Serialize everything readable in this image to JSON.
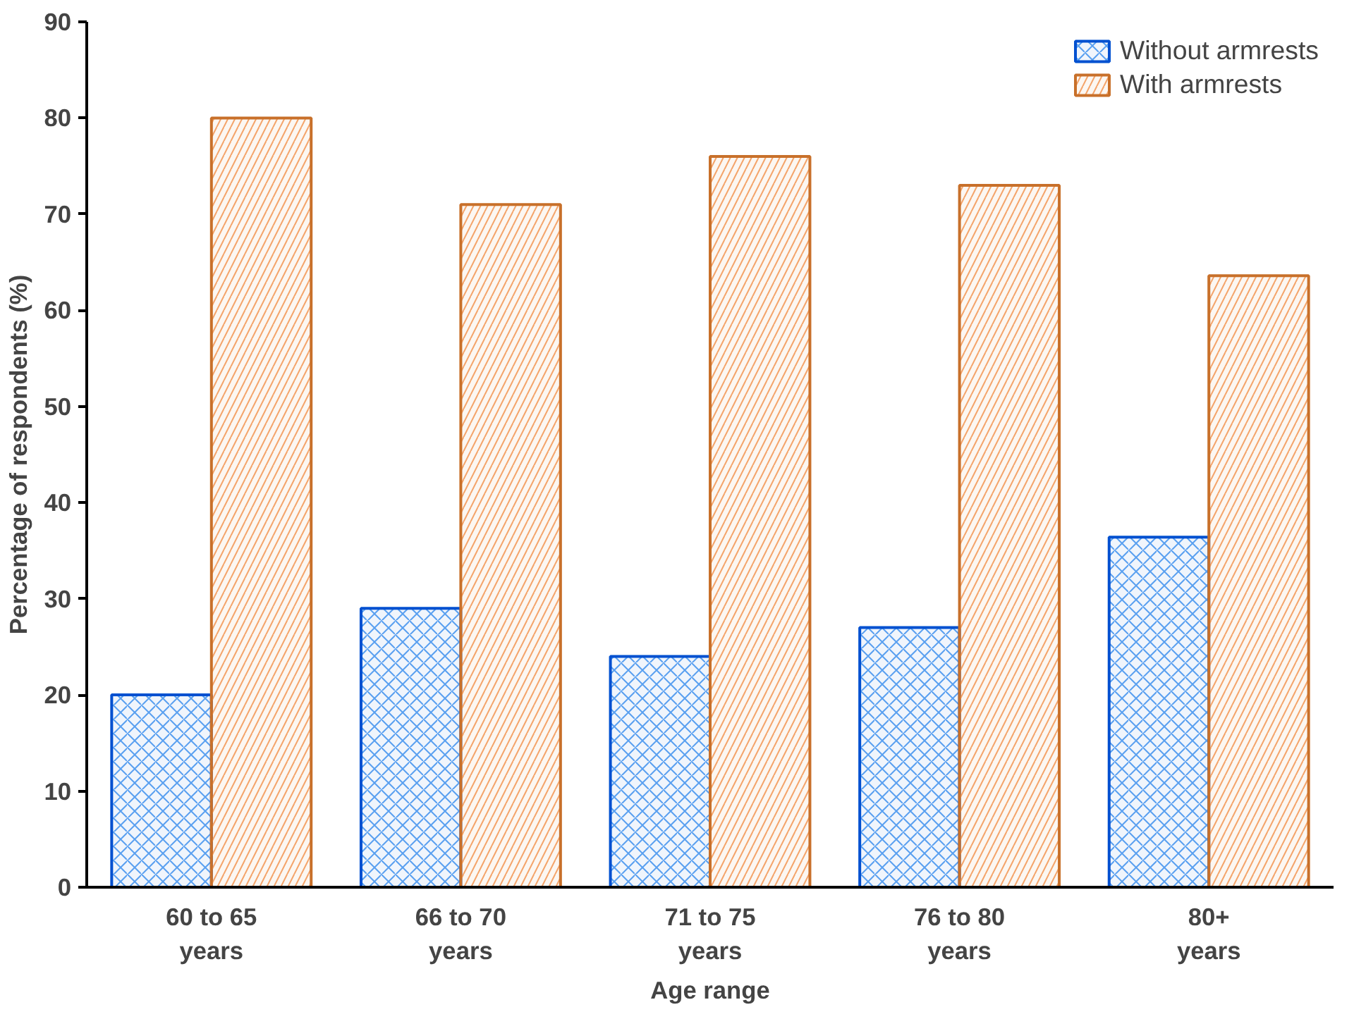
{
  "chart_data": {
    "type": "bar",
    "xlabel": "Age range",
    "ylabel": "Percentage of respondents (%)",
    "categories": [
      "60 to 65 years",
      "66 to 70 years",
      "71 to 75 years",
      "76 to 80 years",
      "80+ years"
    ],
    "series": [
      {
        "name": "Without armrests",
        "color": "#0050d0",
        "values": [
          20,
          29,
          24,
          27,
          36.4
        ]
      },
      {
        "name": "With armrests",
        "color": "#c8702a",
        "values": [
          80,
          71,
          76,
          73,
          63.6
        ]
      }
    ],
    "ylim": [
      0,
      90
    ],
    "yticks": [
      0,
      10,
      20,
      30,
      40,
      50,
      60,
      70,
      80,
      90
    ],
    "grid": false,
    "legend": "top right"
  }
}
